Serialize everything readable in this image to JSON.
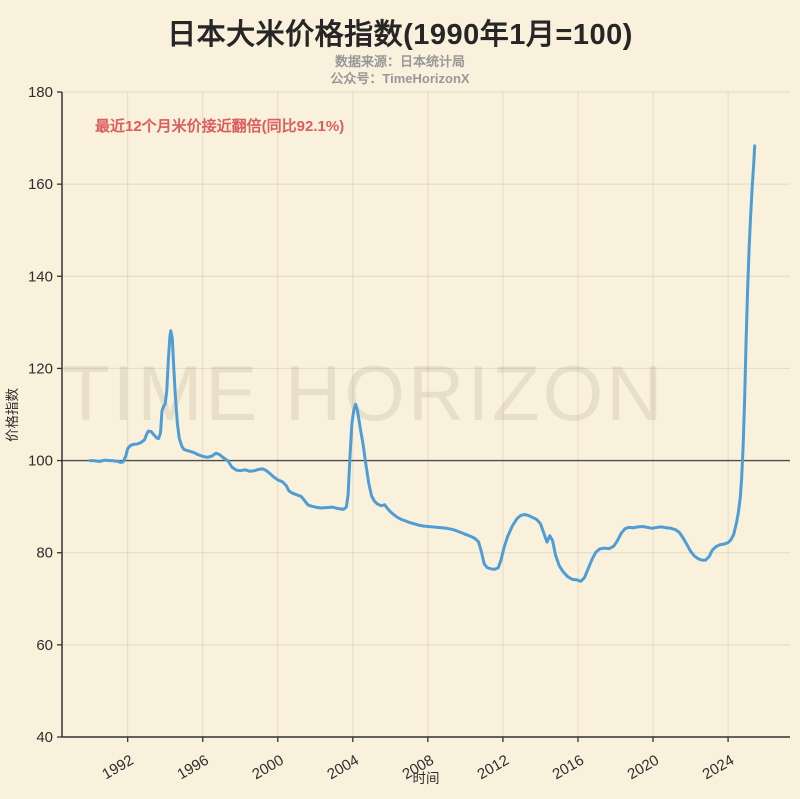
{
  "page": {
    "title": "日本大米价格指数(1990年1月=100)",
    "subtitle_source": "数据来源：日本统计局",
    "subtitle_account": "公众号：TimeHorizonX",
    "watermark": "TIME HORIZON",
    "annotation": "最近12个月米价接近翻倍(同比92.1%)"
  },
  "colors": {
    "background": "#faf1dc",
    "line": "#4f9dd6",
    "annotation_red": "#dd5c5c",
    "reference_line": "#4d4d4d",
    "grid": "rgba(150,140,115,0.22)",
    "axis": "#333333",
    "title": "#262626",
    "subtitle": "#989898"
  },
  "chart_data": {
    "type": "line",
    "title": "日本大米价格指数(1990年1月=100)",
    "xlabel": "时间",
    "ylabel": "价格指数",
    "x_ticks": [
      1992,
      1996,
      2000,
      2004,
      2008,
      2012,
      2016,
      2020,
      2024
    ],
    "y_ticks": [
      40,
      60,
      80,
      100,
      120,
      140,
      160,
      180
    ],
    "xlim": [
      1988.5,
      2027.3
    ],
    "ylim": [
      40,
      180
    ],
    "grid": true,
    "reference_line_y": 100,
    "legend": "none",
    "annotation": "最近12个月米价接近翻倍(同比92.1%)",
    "series": [
      {
        "name": "大米价格指数",
        "x": [
          1990.0,
          1990.17,
          1990.33,
          1990.5,
          1990.67,
          1990.83,
          1991.0,
          1991.17,
          1991.33,
          1991.5,
          1991.6,
          1991.75,
          1991.9,
          1992.0,
          1992.15,
          1992.3,
          1992.5,
          1992.7,
          1992.9,
          1993.0,
          1993.1,
          1993.25,
          1993.4,
          1993.55,
          1993.65,
          1993.75,
          1993.83,
          1993.92,
          1994.0,
          1994.08,
          1994.17,
          1994.25,
          1994.3,
          1994.38,
          1994.46,
          1994.55,
          1994.65,
          1994.75,
          1994.9,
          1995.0,
          1995.25,
          1995.5,
          1995.75,
          1996.0,
          1996.25,
          1996.5,
          1996.7,
          1996.9,
          1997.1,
          1997.35,
          1997.55,
          1997.8,
          1998.0,
          1998.25,
          1998.5,
          1998.75,
          1999.0,
          1999.2,
          1999.4,
          1999.6,
          1999.8,
          2000.0,
          2000.25,
          2000.45,
          2000.6,
          2000.8,
          2001.0,
          2001.25,
          2001.45,
          2001.6,
          2001.8,
          2002.0,
          2002.3,
          2002.6,
          2002.9,
          2003.2,
          2003.5,
          2003.65,
          2003.75,
          2003.85,
          2003.95,
          2004.05,
          2004.15,
          2004.25,
          2004.4,
          2004.55,
          2004.7,
          2004.85,
          2005.0,
          2005.15,
          2005.3,
          2005.5,
          2005.7,
          2005.85,
          2006.0,
          2006.2,
          2006.4,
          2006.6,
          2006.8,
          2007.0,
          2007.25,
          2007.5,
          2007.75,
          2008.0,
          2008.25,
          2008.5,
          2008.75,
          2009.0,
          2009.25,
          2009.5,
          2009.75,
          2010.0,
          2010.25,
          2010.5,
          2010.7,
          2010.85,
          2011.0,
          2011.15,
          2011.35,
          2011.55,
          2011.75,
          2011.9,
          2012.05,
          2012.25,
          2012.5,
          2012.75,
          2012.95,
          2013.15,
          2013.35,
          2013.55,
          2013.8,
          2014.0,
          2014.2,
          2014.35,
          2014.5,
          2014.65,
          2014.8,
          2015.0,
          2015.2,
          2015.45,
          2015.7,
          2015.95,
          2016.15,
          2016.35,
          2016.55,
          2016.75,
          2016.95,
          2017.15,
          2017.4,
          2017.65,
          2017.9,
          2018.1,
          2018.3,
          2018.5,
          2018.7,
          2018.95,
          2019.2,
          2019.45,
          2019.7,
          2019.95,
          2020.2,
          2020.45,
          2020.7,
          2020.95,
          2021.2,
          2021.4,
          2021.6,
          2021.8,
          2022.0,
          2022.2,
          2022.4,
          2022.6,
          2022.8,
          2023.0,
          2023.15,
          2023.35,
          2023.55,
          2023.8,
          2024.0,
          2024.15,
          2024.3,
          2024.45,
          2024.55,
          2024.65,
          2024.72,
          2024.8,
          2024.88,
          2024.96,
          2025.04,
          2025.12,
          2025.2,
          2025.28,
          2025.36,
          2025.42
        ],
        "y": [
          100,
          100,
          99.9,
          99.8,
          100,
          100.1,
          100,
          100,
          99.9,
          99.8,
          99.6,
          99.7,
          101,
          102.6,
          103.3,
          103.5,
          103.6,
          103.9,
          104.5,
          105.6,
          106.4,
          106.3,
          105.6,
          104.9,
          104.8,
          106,
          110.8,
          111.8,
          112.3,
          115,
          122,
          127,
          128.2,
          126.5,
          120,
          113.5,
          108,
          104.8,
          103,
          102.4,
          102.1,
          101.8,
          101.3,
          100.9,
          100.7,
          101,
          101.6,
          101.3,
          100.6,
          99.9,
          98.6,
          97.9,
          97.8,
          98,
          97.7,
          97.8,
          98.1,
          98.2,
          97.8,
          97.1,
          96.4,
          95.8,
          95.4,
          94.6,
          93.4,
          92.9,
          92.6,
          92.2,
          91.2,
          90.4,
          90.1,
          89.9,
          89.7,
          89.8,
          89.9,
          89.6,
          89.4,
          89.9,
          92.5,
          101,
          108,
          111,
          112.2,
          110.8,
          107,
          103.5,
          99,
          95,
          92.3,
          91.2,
          90.6,
          90.2,
          90.4,
          89.6,
          88.9,
          88.2,
          87.6,
          87.2,
          86.9,
          86.6,
          86.3,
          86,
          85.8,
          85.7,
          85.6,
          85.5,
          85.4,
          85.3,
          85.1,
          84.8,
          84.4,
          84,
          83.6,
          83.1,
          82.4,
          80.2,
          77.6,
          76.8,
          76.5,
          76.4,
          76.7,
          78.5,
          81,
          83.5,
          85.8,
          87.4,
          88.1,
          88.3,
          88.1,
          87.7,
          87.2,
          86.3,
          84,
          82.3,
          83.7,
          82.6,
          79.5,
          77.2,
          75.9,
          74.8,
          74.2,
          74.1,
          73.8,
          74.6,
          76.6,
          78.6,
          80.1,
          80.8,
          81,
          80.9,
          81.4,
          82.6,
          84.2,
          85.2,
          85.5,
          85.4,
          85.6,
          85.7,
          85.5,
          85.3,
          85.5,
          85.6,
          85.4,
          85.3,
          85,
          84.4,
          83.2,
          81.8,
          80.3,
          79.3,
          78.7,
          78.4,
          78.4,
          79.2,
          80.5,
          81.3,
          81.7,
          81.9,
          82.2,
          82.8,
          84,
          86.5,
          88.8,
          92,
          96,
          103,
          113,
          126,
          137,
          146,
          153,
          159,
          164,
          168.3
        ]
      }
    ]
  }
}
